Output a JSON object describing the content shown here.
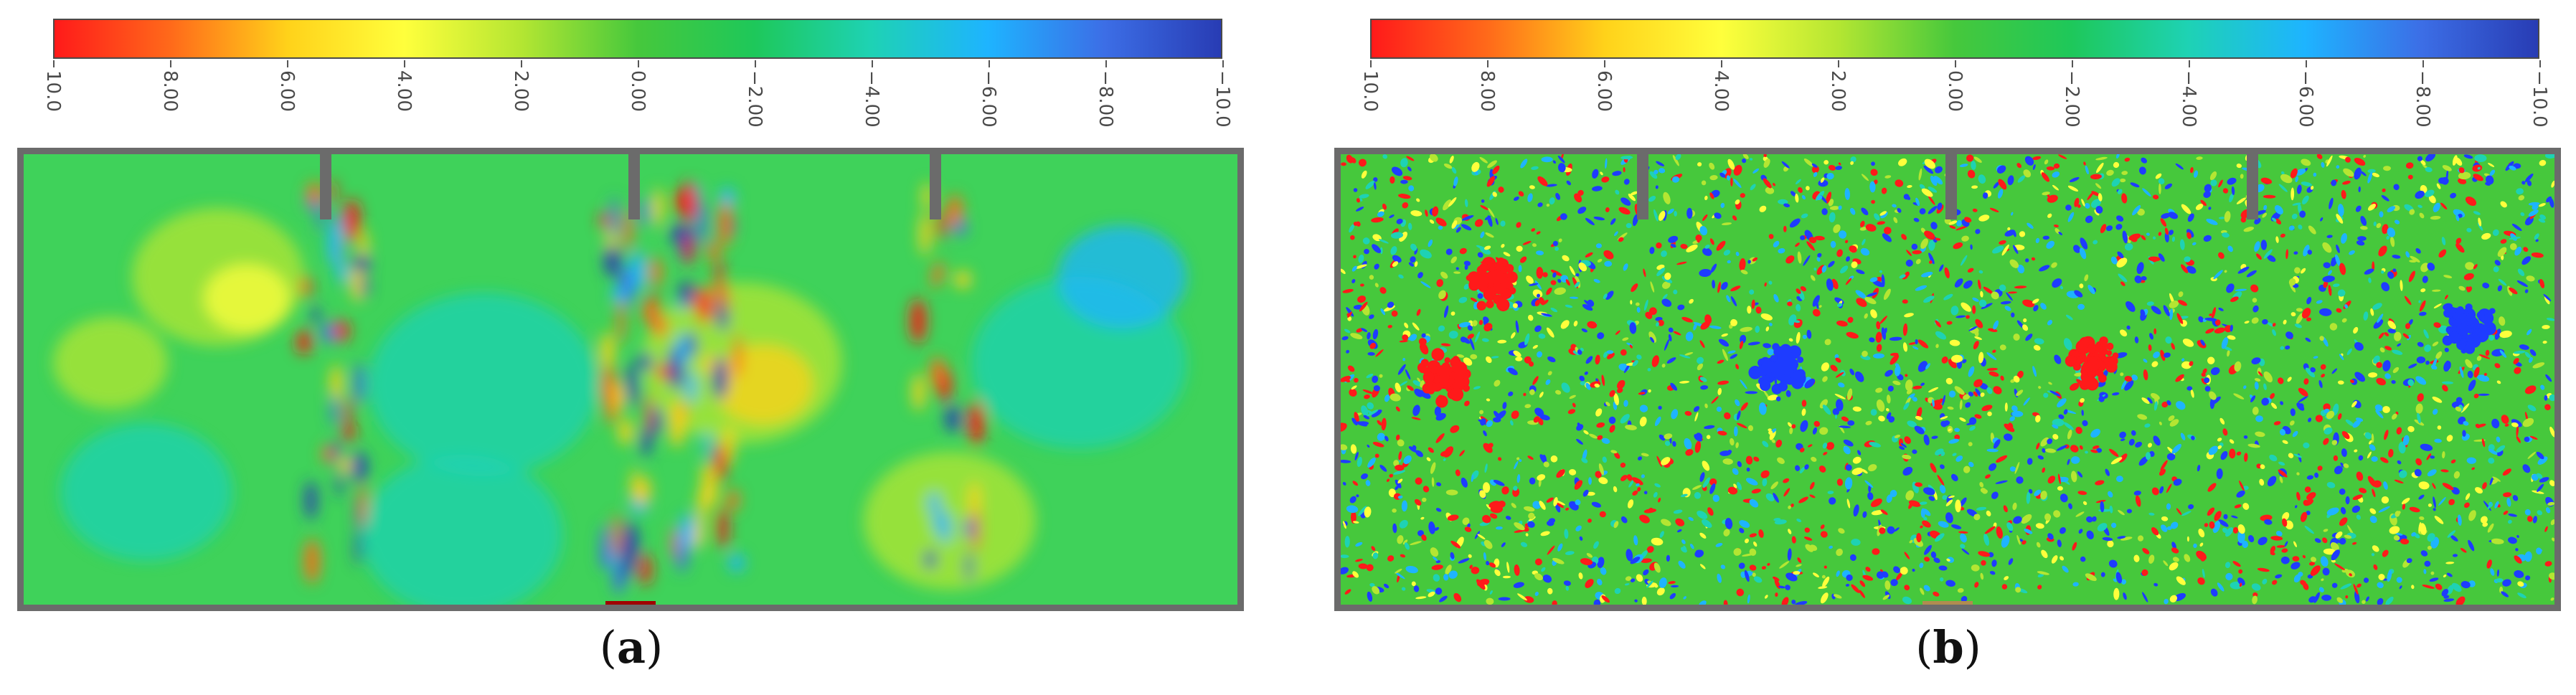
{
  "colormap": {
    "stops": [
      "#ff1a1a",
      "#ff6a1a",
      "#ffd21a",
      "#ffff3c",
      "#b4e632",
      "#46c83c",
      "#1ec85a",
      "#1ed2b4",
      "#1eb4ff",
      "#3c6ee6",
      "#283cb4"
    ],
    "min": -10.0,
    "max": 10.0,
    "tick_labels": [
      "10.0",
      "8.00",
      "6.00",
      "4.00",
      "2.00",
      "0.00",
      "−2.00",
      "−4.00",
      "−6.00",
      "−8.00",
      "−10.0"
    ]
  },
  "panels": [
    {
      "label_open": "(",
      "label_letter": "a",
      "label_close": ")",
      "pattern": "smooth"
    },
    {
      "label_open": "(",
      "label_letter": "b",
      "label_close": ")",
      "pattern": "noisy"
    }
  ],
  "colors": {
    "frame": "#6b6b6b",
    "field_base": "#3fd25a",
    "text": "#4a4a4a"
  }
}
